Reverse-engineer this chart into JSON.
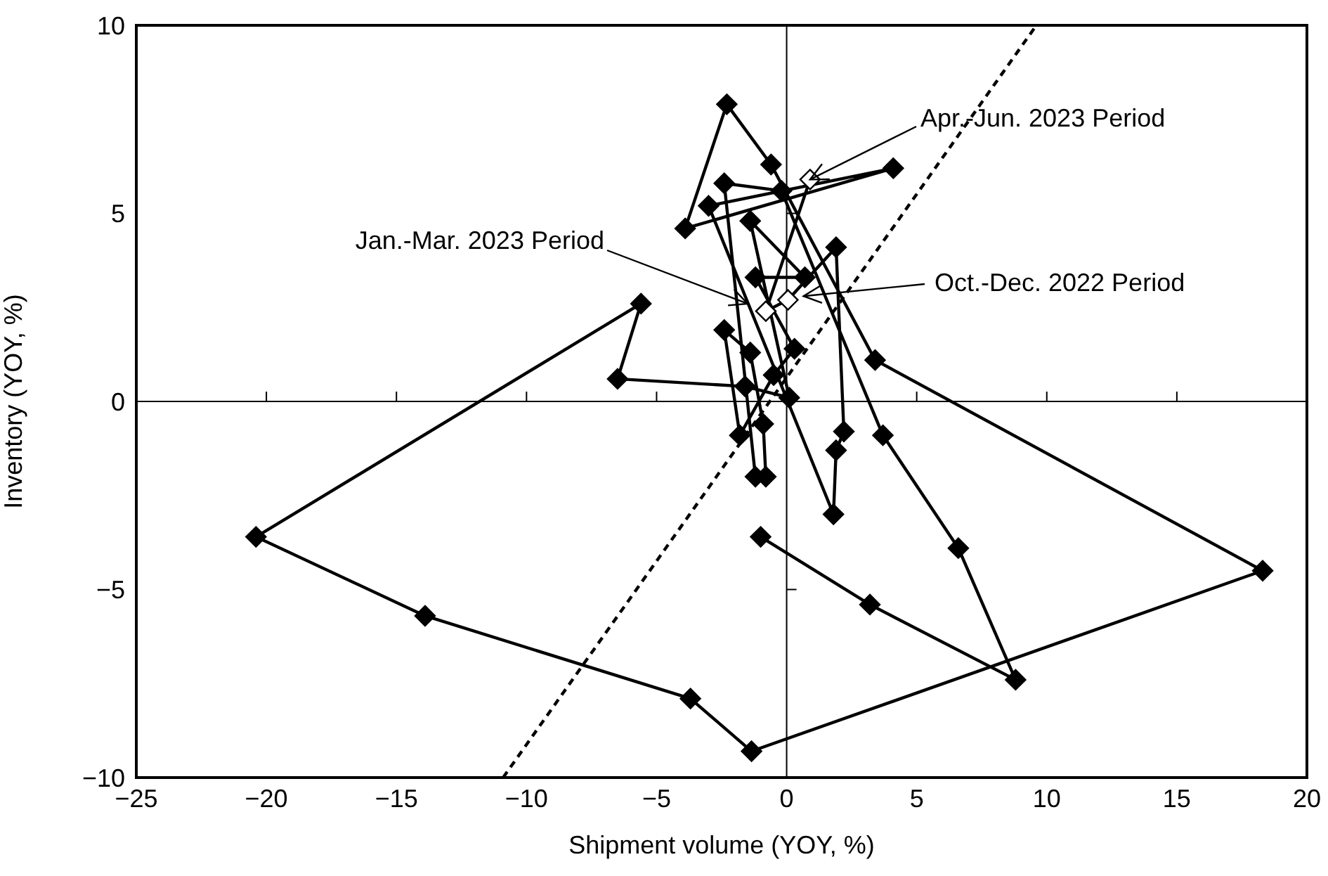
{
  "chart_data": {
    "type": "line",
    "xlabel": "Shipment volume (YOY, %)",
    "ylabel": "Inventory (YOY, %)",
    "xlim": [
      -25,
      20
    ],
    "ylim": [
      -10,
      10
    ],
    "xticks": [
      {
        "value": -25,
        "label": "−25"
      },
      {
        "value": -20,
        "label": "−20"
      },
      {
        "value": -15,
        "label": "−15"
      },
      {
        "value": -10,
        "label": "−10"
      },
      {
        "value": -5,
        "label": "−5"
      },
      0,
      5,
      10,
      15,
      20
    ],
    "yticks": [
      {
        "value": -10,
        "label": "−10"
      },
      {
        "value": -5,
        "label": "−5"
      },
      0,
      5,
      10
    ],
    "legend": false,
    "series": [
      {
        "marker": "diamond",
        "line_style": "solid",
        "color": "#000000",
        "x": [
          -1.0,
          3.2,
          8.8,
          6.6,
          3.7,
          -0.2,
          -2.4,
          -1.2,
          -0.8,
          -0.9,
          -1.4,
          -2.4,
          -1.8,
          -0.5,
          0.3,
          -1.2,
          0.7,
          -1.4,
          0.1,
          -1.6,
          -6.5,
          -5.6,
          -20.4,
          -13.9,
          -3.7,
          -1.35,
          18.3,
          3.4,
          -0.6,
          -2.3,
          -3.9,
          4.1,
          -3.0,
          1.8,
          1.9,
          2.2,
          1.9,
          0.05,
          -0.8,
          0.9
        ],
        "values": [
          -3.6,
          -5.4,
          -7.4,
          -3.9,
          -0.9,
          5.6,
          5.8,
          -2.0,
          -2.0,
          -0.6,
          1.3,
          1.9,
          -0.9,
          0.7,
          1.4,
          3.3,
          3.3,
          4.8,
          0.1,
          0.4,
          0.6,
          2.6,
          -3.6,
          -5.7,
          -7.9,
          -9.3,
          -4.5,
          1.1,
          6.3,
          7.9,
          4.6,
          6.2,
          5.2,
          -3.0,
          -1.3,
          -0.8,
          4.1,
          2.7,
          2.4,
          5.9
        ],
        "colors": [
          "#000000",
          "#000000",
          "#000000",
          "#000000",
          "#000000",
          "#000000",
          "#000000",
          "#000000",
          "#000000",
          "#000000",
          "#000000",
          "#000000",
          "#000000",
          "#000000",
          "#000000",
          "#000000",
          "#000000",
          "#000000",
          "#000000",
          "#000000",
          "#000000",
          "#000000",
          "#000000",
          "#000000",
          "#000000",
          "#000000",
          "#000000",
          "#000000",
          "#000000",
          "#000000",
          "#000000",
          "#000000",
          "#000000",
          "#000000",
          "#000000",
          "#000000",
          "#000000",
          "#ffffff",
          "#ffffff",
          "#ffffff"
        ]
      },
      {
        "marker": "none",
        "line_style": "dashed",
        "color": "#000000",
        "x": [
          -10.9,
          9.6
        ],
        "values": [
          -10,
          10
        ]
      }
    ],
    "annotations": [
      {
        "text": "Apr.-Jun. 2023 Period",
        "x": 0.9,
        "y": 5.9
      },
      {
        "text": "Jan.-Mar. 2023 Period",
        "x": -1.5,
        "y": 2.6
      },
      {
        "text": "Oct.-Dec. 2022 Period",
        "x": 0.65,
        "y": 2.8
      }
    ]
  }
}
